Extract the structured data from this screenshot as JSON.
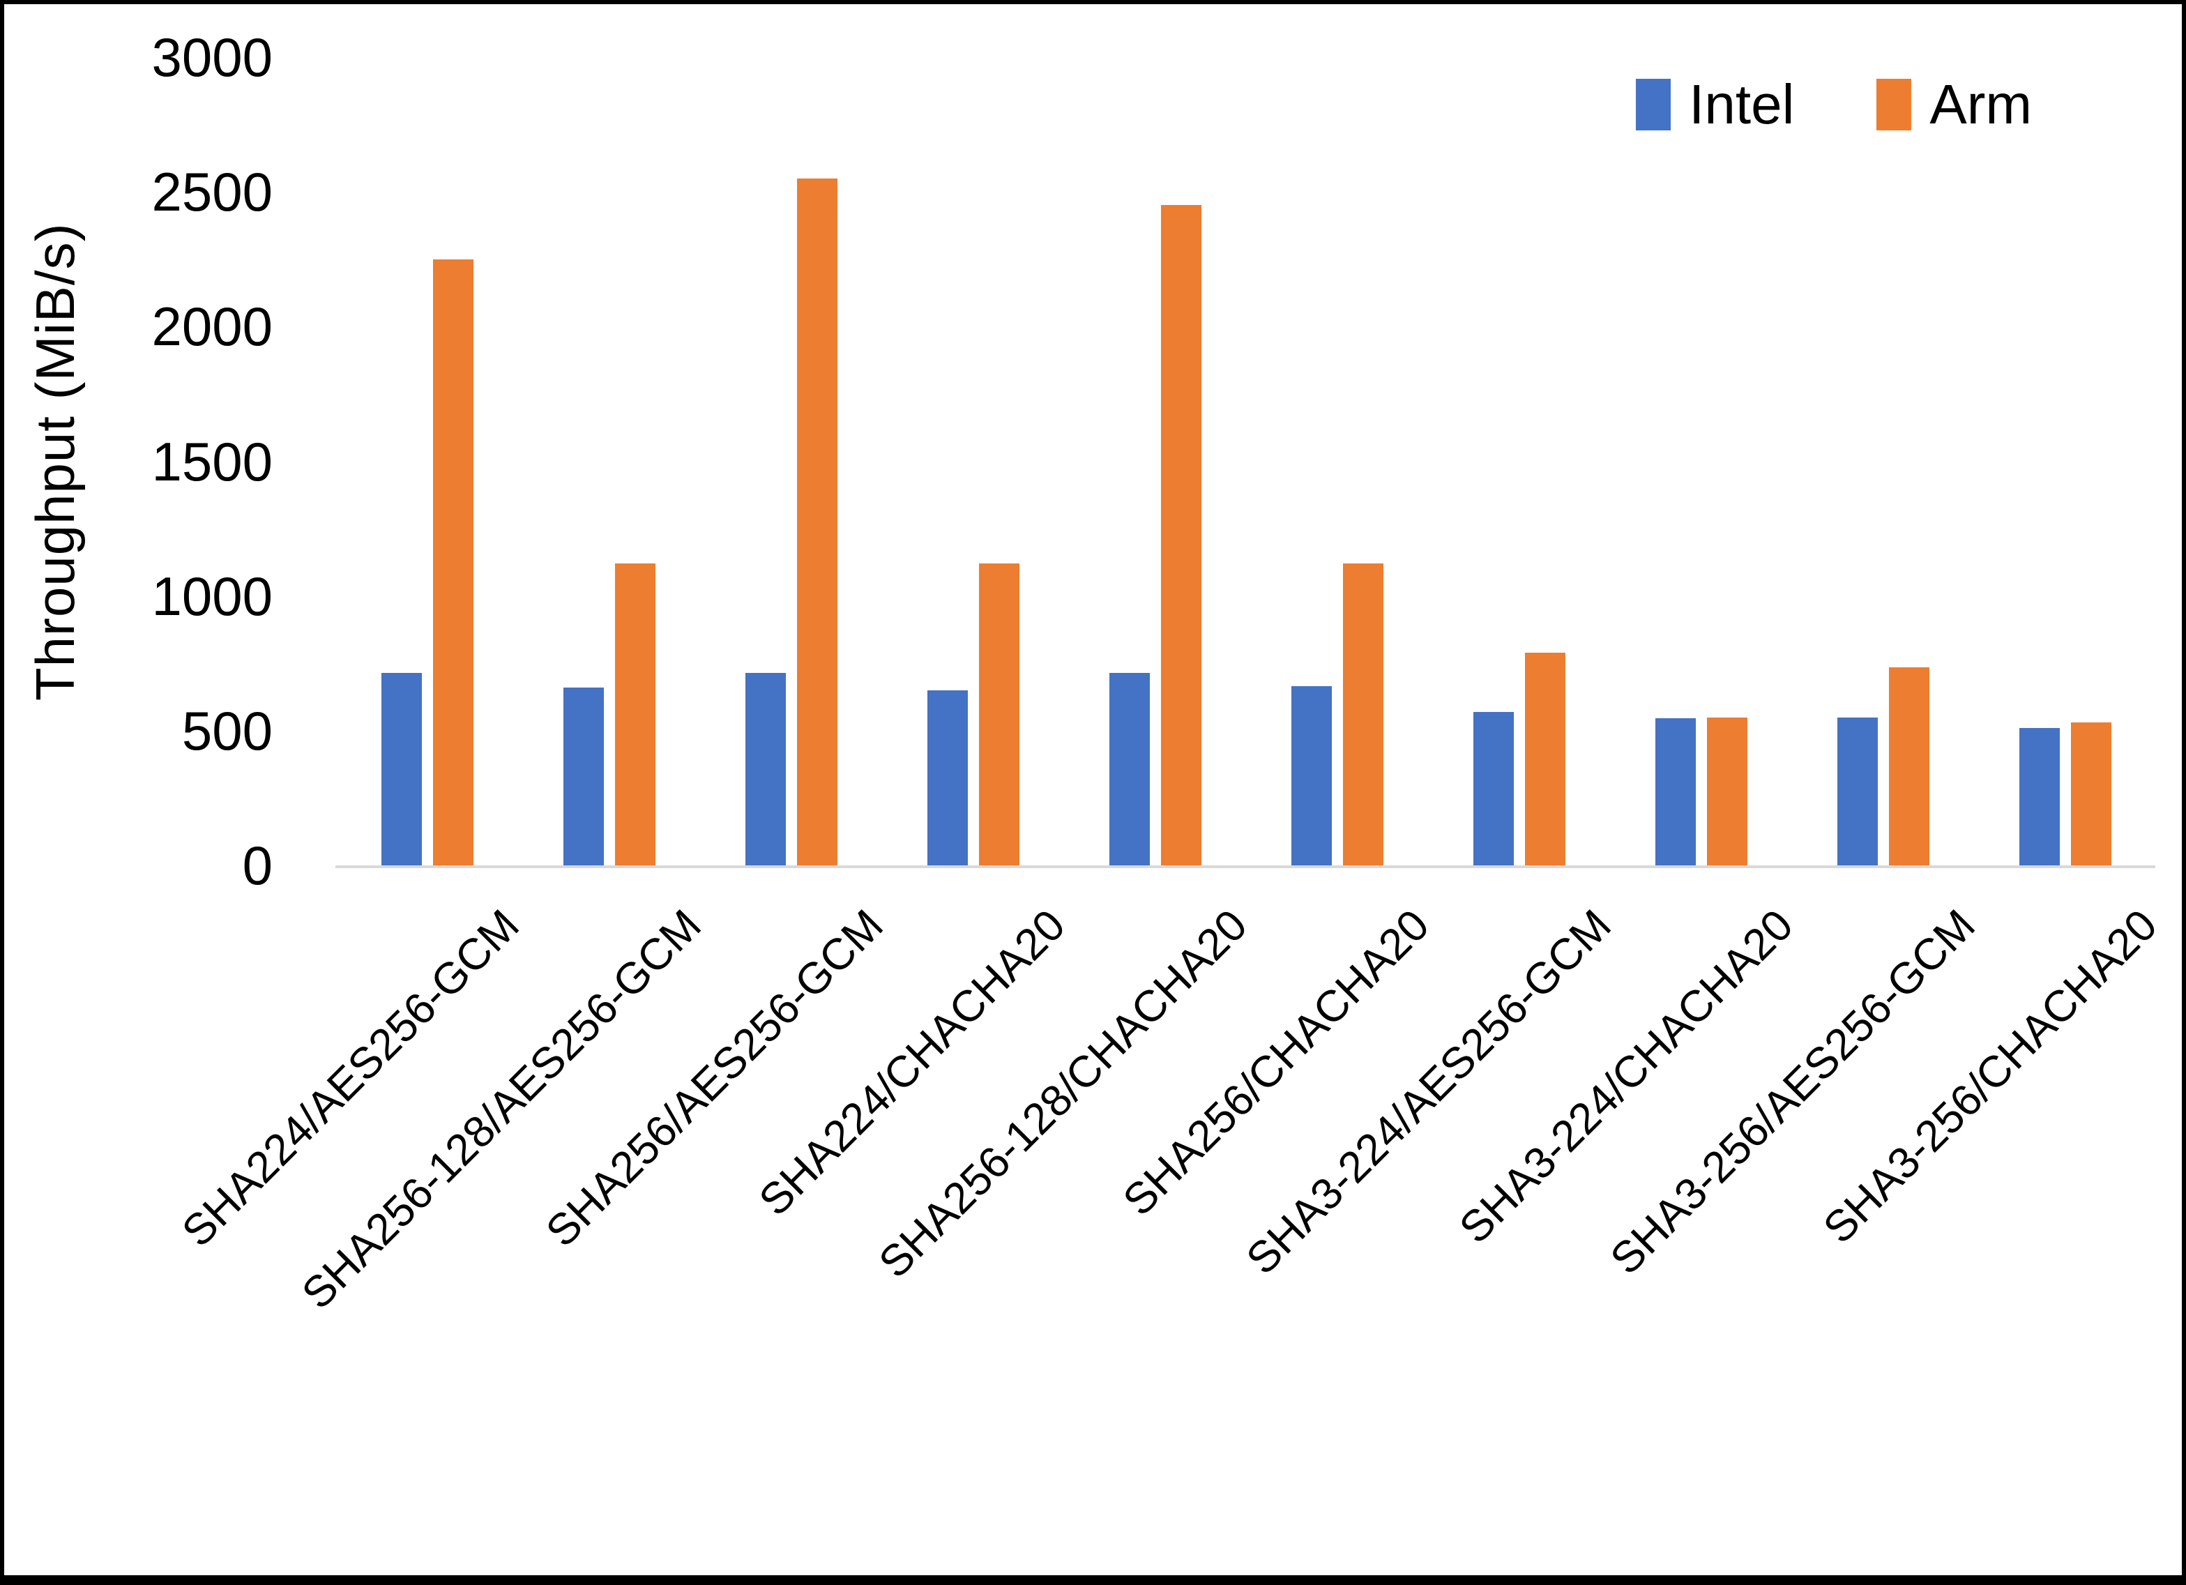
{
  "chart_data": {
    "type": "bar",
    "title": "",
    "xlabel": "",
    "ylabel": "Throughput (MiB/s)",
    "ylim": [
      0,
      3000
    ],
    "yticks": [
      0,
      500,
      1000,
      1500,
      2000,
      2500,
      3000
    ],
    "grid": false,
    "legend_position": "top-right",
    "categories": [
      "SHA224/AES256-GCM",
      "SHA256-128/AES256-GCM",
      "SHA256/AES256-GCM",
      "SHA224/CHACHA20",
      "SHA256-128/CHACHA20",
      "SHA256/CHACHA20",
      "SHA3-224/AES256-GCM",
      "SHA3-224/CHACHA20",
      "SHA3-256/AES256-GCM",
      "SHA3-256/CHACHA20"
    ],
    "series": [
      {
        "name": "Intel",
        "color": "#4472C4",
        "values": [
          715,
          660,
          715,
          650,
          715,
          665,
          570,
          545,
          550,
          510
        ]
      },
      {
        "name": "Arm",
        "color": "#ED7D31",
        "values": [
          2250,
          1120,
          2550,
          1120,
          2450,
          1120,
          790,
          550,
          735,
          530
        ]
      }
    ],
    "colors": {
      "axis_line": "#d9d9d9",
      "text": "#000000",
      "frame": "#000000",
      "background": "#ffffff"
    }
  }
}
